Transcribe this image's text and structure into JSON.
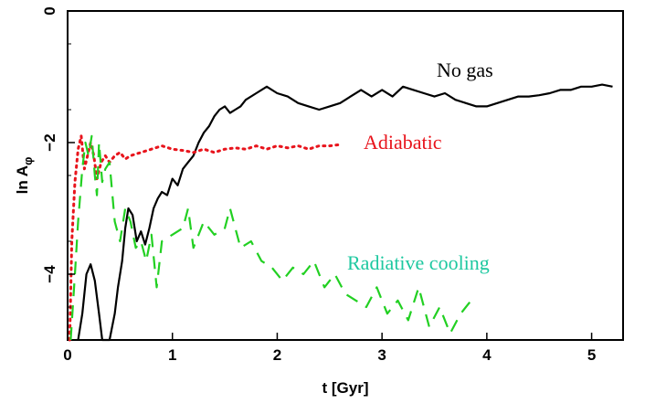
{
  "chart_data": {
    "type": "line",
    "title": "",
    "xlabel": "t [Gyr]",
    "ylabel": "ln A",
    "ylabel_subscript": "φ",
    "xlim": [
      0,
      5.3
    ],
    "ylim": [
      -5,
      0
    ],
    "x_ticks": [
      0,
      1,
      2,
      3,
      4,
      5
    ],
    "y_ticks": [
      0,
      -2,
      -4
    ],
    "grid": false,
    "annotations": [
      {
        "text": "No gas",
        "color": "#000000"
      },
      {
        "text": "Adiabatic",
        "color": "#e8141c"
      },
      {
        "text": "Radiative cooling",
        "color": "#1ec8a0"
      }
    ],
    "series": [
      {
        "name": "No gas",
        "color": "#000000",
        "style": "solid",
        "points": [
          [
            0.1,
            -5.0
          ],
          [
            0.14,
            -4.6
          ],
          [
            0.18,
            -4.0
          ],
          [
            0.22,
            -3.85
          ],
          [
            0.26,
            -4.1
          ],
          [
            0.3,
            -4.6
          ],
          [
            0.33,
            -5.0
          ],
          [
            0.4,
            -5.0
          ],
          [
            0.45,
            -4.6
          ],
          [
            0.48,
            -4.2
          ],
          [
            0.52,
            -3.8
          ],
          [
            0.55,
            -3.3
          ],
          [
            0.58,
            -3.0
          ],
          [
            0.62,
            -3.1
          ],
          [
            0.66,
            -3.5
          ],
          [
            0.7,
            -3.35
          ],
          [
            0.74,
            -3.55
          ],
          [
            0.78,
            -3.3
          ],
          [
            0.82,
            -3.0
          ],
          [
            0.86,
            -2.85
          ],
          [
            0.9,
            -2.75
          ],
          [
            0.95,
            -2.8
          ],
          [
            1.0,
            -2.55
          ],
          [
            1.05,
            -2.65
          ],
          [
            1.1,
            -2.4
          ],
          [
            1.15,
            -2.3
          ],
          [
            1.2,
            -2.2
          ],
          [
            1.25,
            -2.0
          ],
          [
            1.3,
            -1.85
          ],
          [
            1.35,
            -1.75
          ],
          [
            1.4,
            -1.6
          ],
          [
            1.45,
            -1.5
          ],
          [
            1.5,
            -1.45
          ],
          [
            1.55,
            -1.55
          ],
          [
            1.6,
            -1.5
          ],
          [
            1.65,
            -1.45
          ],
          [
            1.7,
            -1.35
          ],
          [
            1.8,
            -1.25
          ],
          [
            1.9,
            -1.15
          ],
          [
            2.0,
            -1.25
          ],
          [
            2.1,
            -1.3
          ],
          [
            2.2,
            -1.4
          ],
          [
            2.3,
            -1.45
          ],
          [
            2.4,
            -1.5
          ],
          [
            2.5,
            -1.45
          ],
          [
            2.6,
            -1.4
          ],
          [
            2.7,
            -1.3
          ],
          [
            2.8,
            -1.2
          ],
          [
            2.9,
            -1.3
          ],
          [
            3.0,
            -1.2
          ],
          [
            3.1,
            -1.3
          ],
          [
            3.2,
            -1.15
          ],
          [
            3.3,
            -1.2
          ],
          [
            3.4,
            -1.25
          ],
          [
            3.5,
            -1.3
          ],
          [
            3.6,
            -1.25
          ],
          [
            3.7,
            -1.35
          ],
          [
            3.8,
            -1.4
          ],
          [
            3.9,
            -1.45
          ],
          [
            4.0,
            -1.45
          ],
          [
            4.1,
            -1.4
          ],
          [
            4.2,
            -1.35
          ],
          [
            4.3,
            -1.3
          ],
          [
            4.4,
            -1.3
          ],
          [
            4.5,
            -1.28
          ],
          [
            4.6,
            -1.25
          ],
          [
            4.7,
            -1.2
          ],
          [
            4.8,
            -1.2
          ],
          [
            4.9,
            -1.15
          ],
          [
            5.0,
            -1.15
          ],
          [
            5.1,
            -1.12
          ],
          [
            5.2,
            -1.15
          ]
        ]
      },
      {
        "name": "Adiabatic",
        "color": "#e8141c",
        "style": "dotted",
        "points": [
          [
            0.02,
            -5.0
          ],
          [
            0.04,
            -3.5
          ],
          [
            0.07,
            -2.6
          ],
          [
            0.1,
            -2.1
          ],
          [
            0.13,
            -1.9
          ],
          [
            0.16,
            -2.4
          ],
          [
            0.19,
            -2.2
          ],
          [
            0.22,
            -2.0
          ],
          [
            0.25,
            -2.2
          ],
          [
            0.28,
            -2.55
          ],
          [
            0.32,
            -2.3
          ],
          [
            0.36,
            -2.2
          ],
          [
            0.4,
            -2.3
          ],
          [
            0.45,
            -2.2
          ],
          [
            0.5,
            -2.15
          ],
          [
            0.55,
            -2.25
          ],
          [
            0.6,
            -2.2
          ],
          [
            0.7,
            -2.15
          ],
          [
            0.8,
            -2.1
          ],
          [
            0.9,
            -2.05
          ],
          [
            1.0,
            -2.1
          ],
          [
            1.1,
            -2.12
          ],
          [
            1.2,
            -2.15
          ],
          [
            1.3,
            -2.1
          ],
          [
            1.4,
            -2.15
          ],
          [
            1.5,
            -2.1
          ],
          [
            1.6,
            -2.08
          ],
          [
            1.7,
            -2.1
          ],
          [
            1.8,
            -2.05
          ],
          [
            1.9,
            -2.1
          ],
          [
            2.0,
            -2.05
          ],
          [
            2.1,
            -2.08
          ],
          [
            2.2,
            -2.05
          ],
          [
            2.3,
            -2.1
          ],
          [
            2.4,
            -2.05
          ],
          [
            2.5,
            -2.05
          ],
          [
            2.6,
            -2.03
          ]
        ]
      },
      {
        "name": "Radiative cooling",
        "color": "#22d022",
        "style": "dashed",
        "points": [
          [
            0.03,
            -5.0
          ],
          [
            0.07,
            -4.0
          ],
          [
            0.1,
            -3.2
          ],
          [
            0.14,
            -2.4
          ],
          [
            0.17,
            -2.0
          ],
          [
            0.2,
            -2.2
          ],
          [
            0.23,
            -1.9
          ],
          [
            0.26,
            -2.5
          ],
          [
            0.28,
            -2.8
          ],
          [
            0.3,
            -2.0
          ],
          [
            0.33,
            -2.6
          ],
          [
            0.36,
            -2.4
          ],
          [
            0.4,
            -2.3
          ],
          [
            0.45,
            -3.2
          ],
          [
            0.5,
            -3.5
          ],
          [
            0.55,
            -3.0
          ],
          [
            0.6,
            -3.2
          ],
          [
            0.65,
            -3.6
          ],
          [
            0.7,
            -3.5
          ],
          [
            0.75,
            -3.8
          ],
          [
            0.8,
            -3.4
          ],
          [
            0.85,
            -4.2
          ],
          [
            0.9,
            -3.5
          ],
          [
            1.0,
            -3.4
          ],
          [
            1.1,
            -3.3
          ],
          [
            1.15,
            -3.0
          ],
          [
            1.2,
            -3.6
          ],
          [
            1.3,
            -3.2
          ],
          [
            1.4,
            -3.4
          ],
          [
            1.5,
            -3.3
          ],
          [
            1.55,
            -3.0
          ],
          [
            1.65,
            -3.6
          ],
          [
            1.75,
            -3.5
          ],
          [
            1.85,
            -3.8
          ],
          [
            1.95,
            -3.9
          ],
          [
            2.05,
            -4.1
          ],
          [
            2.15,
            -3.9
          ],
          [
            2.25,
            -4.0
          ],
          [
            2.35,
            -3.8
          ],
          [
            2.45,
            -4.2
          ],
          [
            2.55,
            -4.0
          ],
          [
            2.65,
            -4.3
          ],
          [
            2.75,
            -4.4
          ],
          [
            2.85,
            -4.5
          ],
          [
            2.95,
            -4.2
          ],
          [
            3.05,
            -4.6
          ],
          [
            3.15,
            -4.4
          ],
          [
            3.25,
            -4.7
          ],
          [
            3.35,
            -4.2
          ],
          [
            3.45,
            -4.8
          ],
          [
            3.55,
            -4.5
          ],
          [
            3.65,
            -4.9
          ],
          [
            3.75,
            -4.6
          ],
          [
            3.85,
            -4.4
          ]
        ]
      }
    ]
  }
}
